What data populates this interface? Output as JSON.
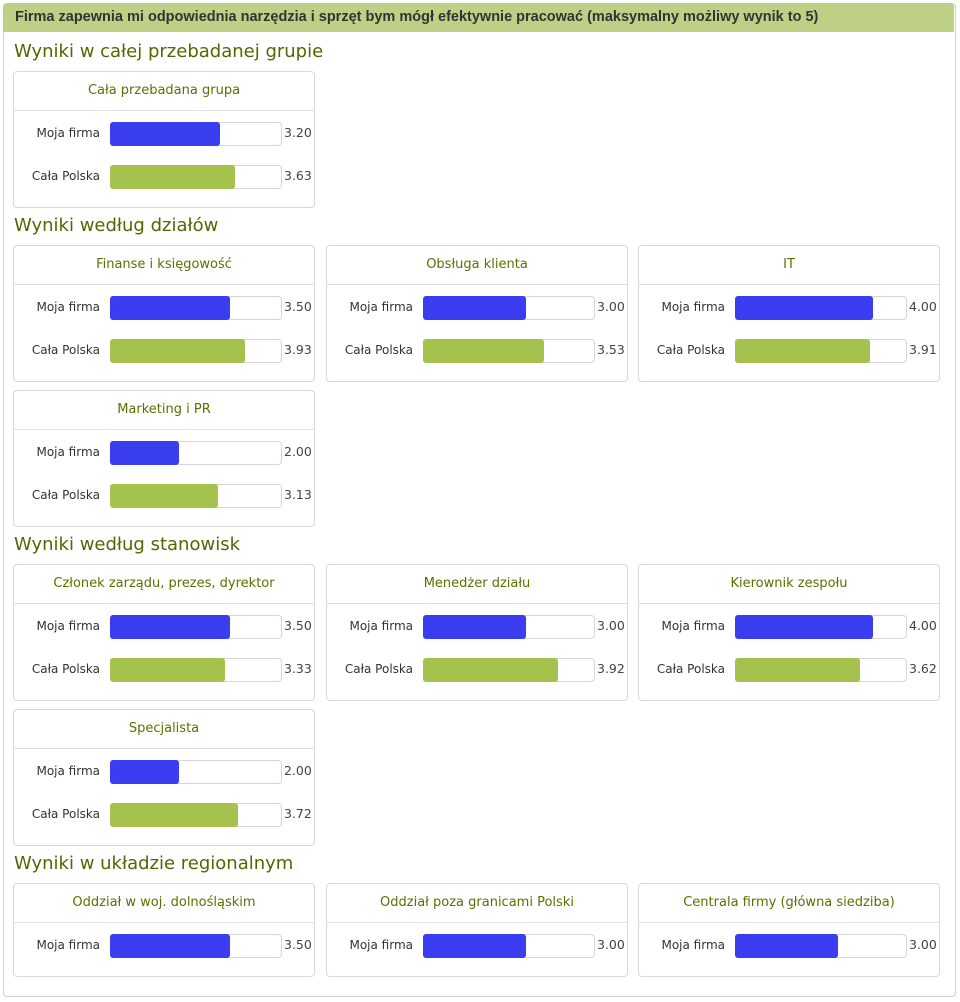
{
  "title": "Firma zapewnia mi odpowiednia narzędzia i sprzęt bym mógł efektywnie pracować (maksymalny możliwy wynik to 5)",
  "xlim": [
    0,
    5
  ],
  "row_colors": [
    "#3a3df0",
    "#a6c24e"
  ],
  "sections": [
    {
      "heading": "Wyniki w całej przebadanej grupie",
      "panels": [
        {
          "title": "Cała przebadana grupa",
          "rows": [
            {
              "label": "Moja firma",
              "value": 3.2,
              "value_label": "3.20"
            },
            {
              "label": "Cała Polska",
              "value": 3.63,
              "value_label": "3.63"
            }
          ]
        }
      ]
    },
    {
      "heading": "Wyniki według działów",
      "panels": [
        {
          "title": "Finanse i księgowość",
          "rows": [
            {
              "label": "Moja firma",
              "value": 3.5,
              "value_label": "3.50"
            },
            {
              "label": "Cała Polska",
              "value": 3.93,
              "value_label": "3.93"
            }
          ]
        },
        {
          "title": "Obsługa klienta",
          "rows": [
            {
              "label": "Moja firma",
              "value": 3,
              "value_label": "3.00"
            },
            {
              "label": "Cała Polska",
              "value": 3.53,
              "value_label": "3.53"
            }
          ]
        },
        {
          "title": "IT",
          "rows": [
            {
              "label": "Moja firma",
              "value": 4,
              "value_label": "4.00"
            },
            {
              "label": "Cała Polska",
              "value": 3.91,
              "value_label": "3.91"
            }
          ]
        },
        {
          "title": "Marketing i PR",
          "rows": [
            {
              "label": "Moja firma",
              "value": 2,
              "value_label": "2.00"
            },
            {
              "label": "Cała Polska",
              "value": 3.13,
              "value_label": "3.13"
            }
          ]
        }
      ]
    },
    {
      "heading": "Wyniki według stanowisk",
      "panels": [
        {
          "title": "Członek zarządu, prezes, dyrektor",
          "rows": [
            {
              "label": "Moja firma",
              "value": 3.5,
              "value_label": "3.50"
            },
            {
              "label": "Cała Polska",
              "value": 3.33,
              "value_label": "3.33"
            }
          ]
        },
        {
          "title": "Menedżer działu",
          "rows": [
            {
              "label": "Moja firma",
              "value": 3,
              "value_label": "3.00"
            },
            {
              "label": "Cała Polska",
              "value": 3.92,
              "value_label": "3.92"
            }
          ]
        },
        {
          "title": "Kierownik zespołu",
          "rows": [
            {
              "label": "Moja firma",
              "value": 4,
              "value_label": "4.00"
            },
            {
              "label": "Cała Polska",
              "value": 3.62,
              "value_label": "3.62"
            }
          ]
        },
        {
          "title": "Specjalista",
          "rows": [
            {
              "label": "Moja firma",
              "value": 2,
              "value_label": "2.00"
            },
            {
              "label": "Cała Polska",
              "value": 3.72,
              "value_label": "3.72"
            }
          ]
        }
      ]
    },
    {
      "heading": "Wyniki w układzie regionalnym",
      "panels": [
        {
          "title": "Oddział w woj. dolnośląskim",
          "rows": [
            {
              "label": "Moja firma",
              "value": 3.5,
              "value_label": "3.50"
            }
          ]
        },
        {
          "title": "Oddział poza granicami Polski",
          "rows": [
            {
              "label": "Moja firma",
              "value": 3,
              "value_label": "3.00"
            }
          ]
        },
        {
          "title": "Centrala firmy (główna siedziba)",
          "rows": [
            {
              "label": "Moja firma",
              "value": 3,
              "value_label": "3.00"
            }
          ]
        }
      ]
    }
  ]
}
